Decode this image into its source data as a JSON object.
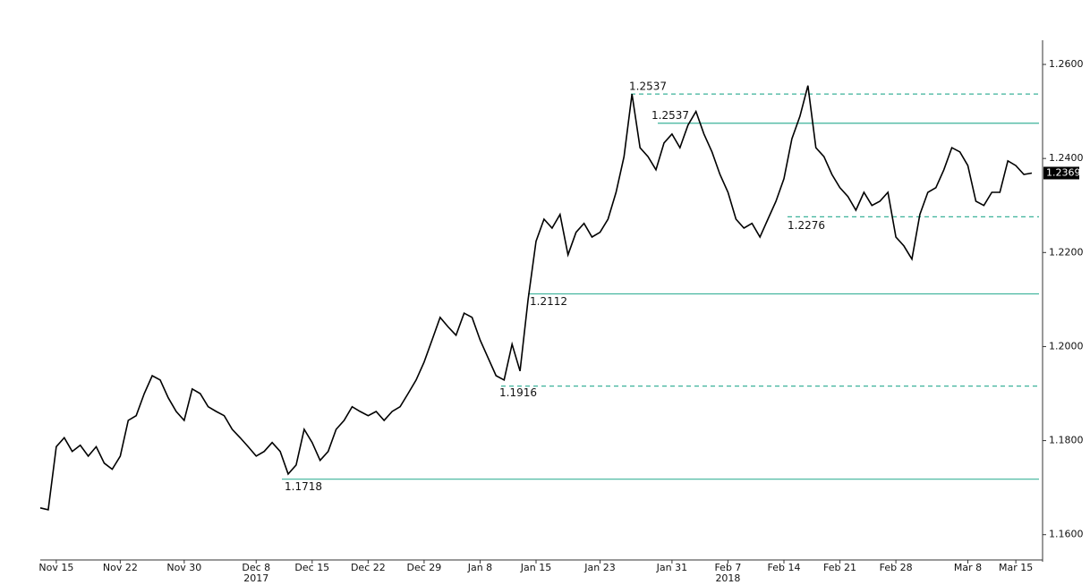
{
  "chart_data": {
    "type": "line",
    "color": "#000000",
    "level_color": "#3cb29a",
    "categories": [
      null,
      null,
      "Nov 15",
      null,
      null,
      null,
      null,
      null,
      null,
      null,
      "Nov 22",
      null,
      null,
      null,
      null,
      null,
      null,
      null,
      "Nov 30",
      null,
      null,
      null,
      null,
      null,
      null,
      null,
      null,
      "Dec 8",
      null,
      null,
      null,
      null,
      null,
      null,
      "Dec 15",
      null,
      null,
      null,
      null,
      null,
      null,
      "Dec 22",
      null,
      null,
      null,
      null,
      null,
      null,
      "Dec 29",
      null,
      null,
      null,
      null,
      null,
      null,
      "Jan 8",
      null,
      null,
      null,
      null,
      null,
      null,
      "Jan 15",
      null,
      null,
      null,
      null,
      null,
      null,
      null,
      "Jan 23",
      null,
      null,
      null,
      null,
      null,
      null,
      null,
      null,
      "Jan 31",
      null,
      null,
      null,
      null,
      null,
      null,
      "Feb 7",
      null,
      null,
      null,
      null,
      null,
      null,
      "Feb 14",
      null,
      null,
      null,
      null,
      null,
      null,
      "Feb 21",
      null,
      null,
      null,
      null,
      null,
      null,
      "Feb 28",
      null,
      null,
      null,
      null,
      null,
      null,
      null,
      null,
      "Mar 8",
      null,
      null,
      null,
      null,
      null,
      "Mar 15",
      null,
      null
    ],
    "category_years": [
      null,
      null,
      null,
      null,
      null,
      null,
      null,
      null,
      null,
      null,
      null,
      null,
      null,
      null,
      null,
      null,
      null,
      null,
      null,
      null,
      null,
      null,
      null,
      null,
      null,
      null,
      null,
      "2017",
      null,
      null,
      null,
      null,
      null,
      null,
      null,
      null,
      null,
      null,
      null,
      null,
      null,
      null,
      null,
      null,
      null,
      null,
      null,
      null,
      null,
      null,
      null,
      null,
      null,
      null,
      null,
      null,
      null,
      null,
      null,
      null,
      null,
      null,
      null,
      null,
      null,
      null,
      null,
      null,
      null,
      null,
      null,
      null,
      null,
      null,
      null,
      null,
      null,
      null,
      null,
      null,
      null,
      null,
      null,
      null,
      null,
      null,
      "2018",
      null,
      null,
      null,
      null,
      null,
      null,
      null,
      null,
      null,
      null,
      null,
      null,
      null,
      null,
      null,
      null,
      null,
      null,
      null,
      null,
      null,
      null,
      null,
      null,
      null,
      null,
      null,
      null,
      null,
      null,
      null,
      null,
      null,
      null,
      null,
      null,
      null,
      null
    ],
    "values": [
      1.1657,
      1.1653,
      1.1787,
      1.1806,
      1.1777,
      1.179,
      1.1767,
      1.1787,
      1.1752,
      1.1739,
      1.1767,
      1.1843,
      1.1853,
      1.19,
      1.1938,
      1.1929,
      1.1891,
      1.1862,
      1.1843,
      1.191,
      1.19,
      1.1872,
      1.1862,
      1.1853,
      1.1824,
      1.1806,
      1.1787,
      1.1767,
      1.1777,
      1.1796,
      1.1777,
      1.1729,
      1.1748,
      1.1824,
      1.1796,
      1.1758,
      1.1777,
      1.1824,
      1.1843,
      1.1872,
      1.1862,
      1.1853,
      1.1862,
      1.1843,
      1.1862,
      1.1872,
      1.19,
      1.1929,
      1.1967,
      1.2014,
      1.2062,
      1.2042,
      1.2024,
      1.2071,
      1.2062,
      1.2014,
      1.1976,
      1.1938,
      1.1929,
      1.2005,
      1.1948,
      1.21,
      1.2224,
      1.2271,
      1.2252,
      1.2281,
      1.2195,
      1.2243,
      1.2262,
      1.2233,
      1.2243,
      1.2271,
      1.2328,
      1.2404,
      1.2537,
      1.2423,
      1.2404,
      1.2376,
      1.2433,
      1.2452,
      1.2423,
      1.2471,
      1.25,
      1.2452,
      1.2414,
      1.2366,
      1.2328,
      1.2271,
      1.2252,
      1.2262,
      1.2233,
      1.2271,
      1.2309,
      1.2357,
      1.2442,
      1.249,
      1.2555,
      1.2423,
      1.2404,
      1.2366,
      1.2338,
      1.2319,
      1.229,
      1.2328,
      1.23,
      1.2309,
      1.2328,
      1.2233,
      1.2214,
      1.2186,
      1.2281,
      1.2328,
      1.2338,
      1.2376,
      1.2423,
      1.2414,
      1.2385,
      1.2309,
      1.23,
      1.2328,
      1.2328,
      1.2395,
      1.2385,
      1.2366,
      1.2369
    ],
    "ylim": [
      1.155,
      1.264
    ],
    "yticks": [
      {
        "value": 1.16,
        "label": "1.1600"
      },
      {
        "value": 1.18,
        "label": "1.1800"
      },
      {
        "value": 1.2,
        "label": "1.2000"
      },
      {
        "value": 1.22,
        "label": "1.2200"
      },
      {
        "value": 1.24,
        "label": "1.2400"
      },
      {
        "value": 1.26,
        "label": "1.2600"
      }
    ],
    "levels": [
      {
        "value": 1.2537,
        "label": "1.2537",
        "style": "dashed"
      },
      {
        "value": 1.2475,
        "style": "solid"
      },
      {
        "value": 1.2112,
        "label": "1.2112",
        "style": "solid"
      },
      {
        "value": 1.1718,
        "label": "1.1718",
        "style": "solid"
      },
      {
        "value": 1.2276,
        "label": "1.2276",
        "style": "dashed"
      },
      {
        "value": 1.1916,
        "label": "1.1916",
        "style": "dashed"
      }
    ],
    "notes": [
      "1.2537"
    ]
  }
}
